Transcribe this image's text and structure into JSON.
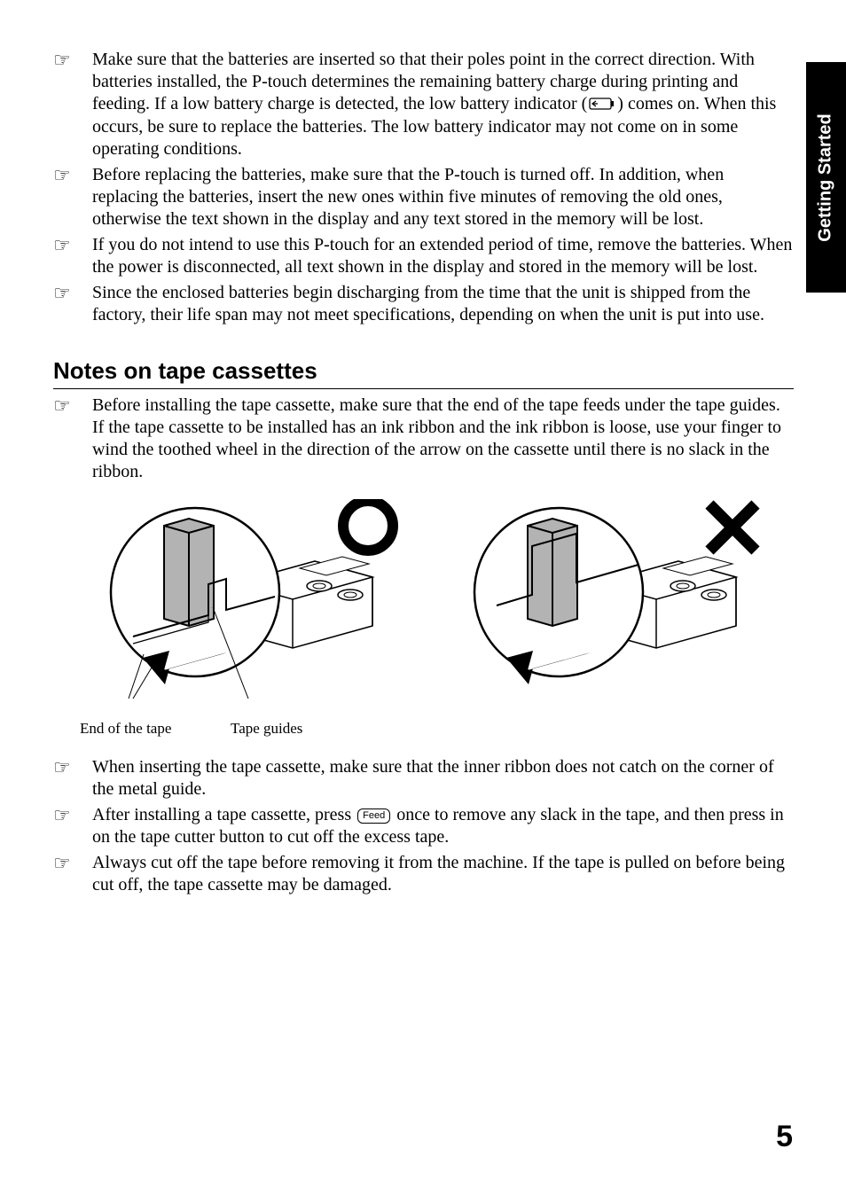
{
  "sideTab": "Getting Started",
  "pageNumber": "5",
  "batteryNotes": [
    "Make sure that the batteries are inserted so that their poles point in the correct direction. With batteries installed, the P-touch determines the remaining battery charge during printing and feeding. If a low battery charge is detected, the low battery indicator (___BATTERY___) comes on. When this occurs, be sure to replace the batteries. The low battery indicator may not come on in some operating conditions.",
    "Before replacing the batteries, make sure that the P-touch is turned off. In addition, when replacing the batteries, insert the new ones within five minutes of removing the old ones, otherwise the text shown in the display and any text stored in the memory will be lost.",
    "If you do not intend to use this P-touch for an extended period of time, remove the batteries. When the power is disconnected, all text shown in the display and stored in the memory will be lost.",
    "Since the enclosed batteries begin discharging from the time that the unit is shipped from the factory, their life span may not meet specifications, depending on when the unit is put into use."
  ],
  "sectionHeading": "Notes on tape cassettes",
  "tapeNotesTop": [
    "Before installing the tape cassette, make sure that the end of the tape feeds under the tape guides. If the tape cassette to be installed has an ink ribbon and the ink ribbon is loose, use your finger to wind the toothed wheel in the direction of the arrow on the cassette until there is no slack in the ribbon."
  ],
  "figureCaptions": {
    "endOfTape": "End of the tape",
    "tapeGuides": "Tape guides"
  },
  "tapeNotesBottom": [
    "When inserting the tape cassette, make sure that the inner ribbon does not catch on the corner of the metal guide.",
    "After installing a tape cassette, press ___FEED___ once to remove any slack in the tape, and then press in on the tape cutter button to cut off the excess tape.",
    "Always cut off the tape before removing it from the machine. If the tape is pulled on before being cut off, the tape cassette may be damaged."
  ],
  "feedKeyLabel": "Feed",
  "icons": {
    "bullet": "☞",
    "correctMark": "circle",
    "wrongMark": "cross"
  },
  "styling": {
    "bodyFontSize": 20,
    "headingFontSize": 26,
    "pageNumberFontSize": 34,
    "sideTabFontSize": 20,
    "captionFontSize": 17,
    "colors": {
      "text": "#000000",
      "background": "#ffffff",
      "sideTabBg": "#000000",
      "sideTabText": "#ffffff",
      "figureGray": "#b3b3b3",
      "figureDarkGray": "#808080"
    }
  }
}
